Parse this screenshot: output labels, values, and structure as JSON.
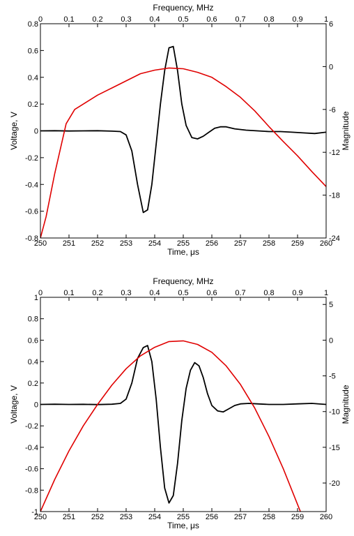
{
  "colors": {
    "waveform": "#000000",
    "spectrum": "#e00000",
    "axes": "#000000",
    "background": "#ffffff"
  },
  "chart_data": [
    {
      "type": "line",
      "xlabel": "Time, μs",
      "ylabel": "Voltage, V",
      "x2label": "Frequency, MHz",
      "y2label": "Magnitude",
      "xlim": [
        250,
        260
      ],
      "ylim": [
        -0.8,
        0.8
      ],
      "x2lim": [
        0,
        1
      ],
      "y2lim": [
        -24,
        6
      ],
      "grid": false,
      "x_ticks": [
        "250",
        "251",
        "252",
        "253",
        "254",
        "255",
        "256",
        "257",
        "258",
        "259",
        "260"
      ],
      "y_ticks": [
        "-0.8",
        "-0.6",
        "-0.4",
        "-0.2",
        "0",
        "0.2",
        "0.4",
        "0.6",
        "0.8"
      ],
      "x2_ticks": [
        "0",
        "0.1",
        "0.2",
        "0.3",
        "0.4",
        "0.5",
        "0.6",
        "0.7",
        "0.8",
        "0.9",
        "1"
      ],
      "y2_ticks": [
        "-24",
        "-18",
        "-12",
        "-6",
        "0",
        "6"
      ],
      "series": [
        {
          "axis": "primary",
          "color": "#000000",
          "x": [
            250,
            250.5,
            251,
            251.5,
            252,
            252.5,
            252.8,
            253.0,
            253.2,
            253.4,
            253.6,
            253.75,
            253.9,
            254.05,
            254.2,
            254.35,
            254.5,
            254.65,
            254.8,
            254.95,
            255.1,
            255.3,
            255.5,
            255.7,
            255.9,
            256.1,
            256.3,
            256.5,
            256.8,
            257.2,
            257.6,
            258.0,
            258.4,
            258.8,
            259.2,
            259.6,
            260
          ],
          "y": [
            0,
            0.001,
            -0.001,
            0,
            0.001,
            -0.002,
            -0.005,
            -0.03,
            -0.15,
            -0.4,
            -0.61,
            -0.59,
            -0.4,
            -0.1,
            0.2,
            0.45,
            0.62,
            0.63,
            0.45,
            0.2,
            0.04,
            -0.05,
            -0.06,
            -0.04,
            -0.01,
            0.02,
            0.03,
            0.03,
            0.015,
            0.005,
            0.0,
            -0.005,
            -0.005,
            -0.01,
            -0.015,
            -0.02,
            -0.01
          ]
        },
        {
          "axis": "secondary",
          "color": "#e00000",
          "x": [
            0.0,
            0.02,
            0.05,
            0.09,
            0.12,
            0.16,
            0.2,
            0.25,
            0.3,
            0.35,
            0.4,
            0.45,
            0.5,
            0.55,
            0.6,
            0.65,
            0.7,
            0.75,
            0.8,
            0.85,
            0.9,
            0.95,
            1.0
          ],
          "y": [
            -24,
            -21,
            -15,
            -8,
            -6,
            -5,
            -4,
            -3,
            -2,
            -1,
            -0.5,
            -0.2,
            -0.3,
            -0.8,
            -1.5,
            -2.8,
            -4.3,
            -6.2,
            -8.4,
            -10.5,
            -12.5,
            -14.7,
            -16.8
          ]
        }
      ]
    },
    {
      "type": "line",
      "xlabel": "Time, μs",
      "ylabel": "Voltage, V",
      "x2label": "Frequency, MHz",
      "y2label": "Magnitude",
      "xlim": [
        250,
        260
      ],
      "ylim": [
        -1,
        1
      ],
      "x2lim": [
        0,
        1
      ],
      "y2lim": [
        -24,
        6
      ],
      "grid": false,
      "x_ticks": [
        "250",
        "251",
        "252",
        "253",
        "254",
        "255",
        "256",
        "257",
        "258",
        "259",
        "260"
      ],
      "y_ticks": [
        "-1",
        "-0.8",
        "-0.6",
        "-0.4",
        "-0.2",
        "0",
        "0.2",
        "0.4",
        "0.6",
        "0.8",
        "1"
      ],
      "x2_ticks": [
        "0",
        "0.1",
        "0.2",
        "0.3",
        "0.4",
        "0.5",
        "0.6",
        "0.7",
        "0.8",
        "0.9",
        "1"
      ],
      "y2_ticks": [
        "-20",
        "-15",
        "-10",
        "-5",
        "0",
        "5"
      ],
      "series": [
        {
          "axis": "primary",
          "color": "#000000",
          "x": [
            250,
            250.5,
            251,
            251.5,
            252,
            252.5,
            252.8,
            253.0,
            253.2,
            253.4,
            253.6,
            253.75,
            253.9,
            254.05,
            254.2,
            254.35,
            254.5,
            254.65,
            254.8,
            254.95,
            255.1,
            255.25,
            255.4,
            255.55,
            255.7,
            255.85,
            256.0,
            256.2,
            256.4,
            256.6,
            256.8,
            257.0,
            257.3,
            257.6,
            258.0,
            258.5,
            259.0,
            259.5,
            260
          ],
          "y": [
            0,
            0.002,
            0,
            0.001,
            -0.001,
            0.002,
            0.01,
            0.05,
            0.2,
            0.43,
            0.53,
            0.55,
            0.4,
            0.05,
            -0.4,
            -0.78,
            -0.92,
            -0.85,
            -0.55,
            -0.15,
            0.15,
            0.32,
            0.39,
            0.36,
            0.25,
            0.1,
            -0.01,
            -0.06,
            -0.07,
            -0.04,
            -0.01,
            0.005,
            0.01,
            0.005,
            0.0,
            0.0,
            0.005,
            0.01,
            0.0
          ]
        },
        {
          "axis": "secondary",
          "color": "#e00000",
          "x": [
            0.0,
            0.05,
            0.1,
            0.15,
            0.2,
            0.25,
            0.3,
            0.35,
            0.4,
            0.45,
            0.5,
            0.55,
            0.6,
            0.65,
            0.7,
            0.75,
            0.8,
            0.85,
            0.9,
            0.95
          ],
          "y": [
            -24,
            -19.5,
            -15.5,
            -12,
            -9,
            -6.3,
            -4,
            -2.2,
            -1,
            -0.2,
            -0.1,
            -0.6,
            -1.7,
            -3.6,
            -6.2,
            -9.5,
            -13.5,
            -18,
            -23,
            -28
          ]
        }
      ]
    }
  ]
}
